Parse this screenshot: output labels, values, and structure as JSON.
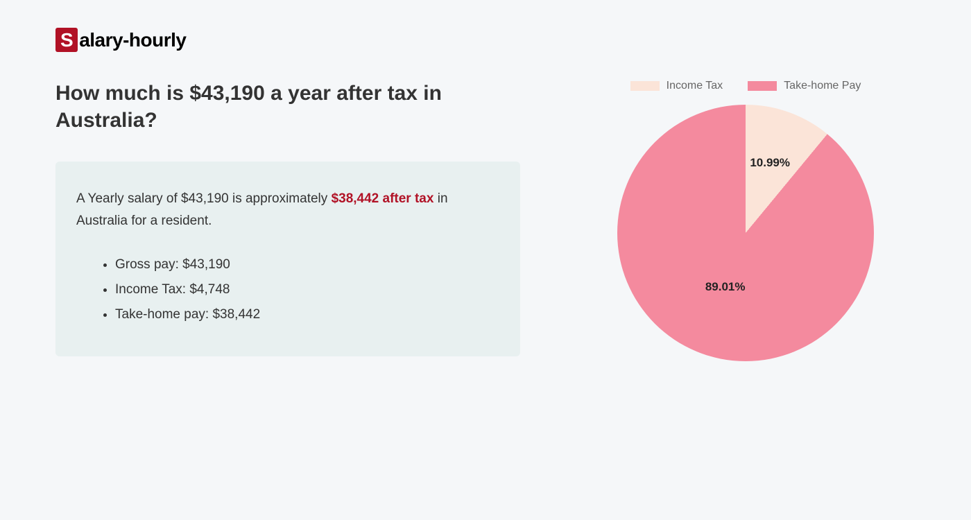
{
  "logo": {
    "initial": "S",
    "rest": "alary-hourly"
  },
  "heading": "How much is $43,190 a year after tax in Australia?",
  "summary": {
    "prefix": "A Yearly salary of $43,190 is approximately ",
    "highlight": "$38,442 after tax",
    "suffix": " in Australia for a resident.",
    "bullets": [
      "Gross pay: $43,190",
      "Income Tax: $4,748",
      "Take-home pay: $38,442"
    ]
  },
  "chart": {
    "type": "pie",
    "background_color": "#f5f7f9",
    "legend_text_color": "#666666",
    "label_text_color": "#222222",
    "label_fontsize": 17,
    "label_fontweight": 700,
    "slices": [
      {
        "name": "Income Tax",
        "value": 10.99,
        "label": "10.99%",
        "color": "#fbe4d8"
      },
      {
        "name": "Take-home Pay",
        "value": 89.01,
        "label": "89.01%",
        "color": "#f48a9e"
      }
    ]
  }
}
